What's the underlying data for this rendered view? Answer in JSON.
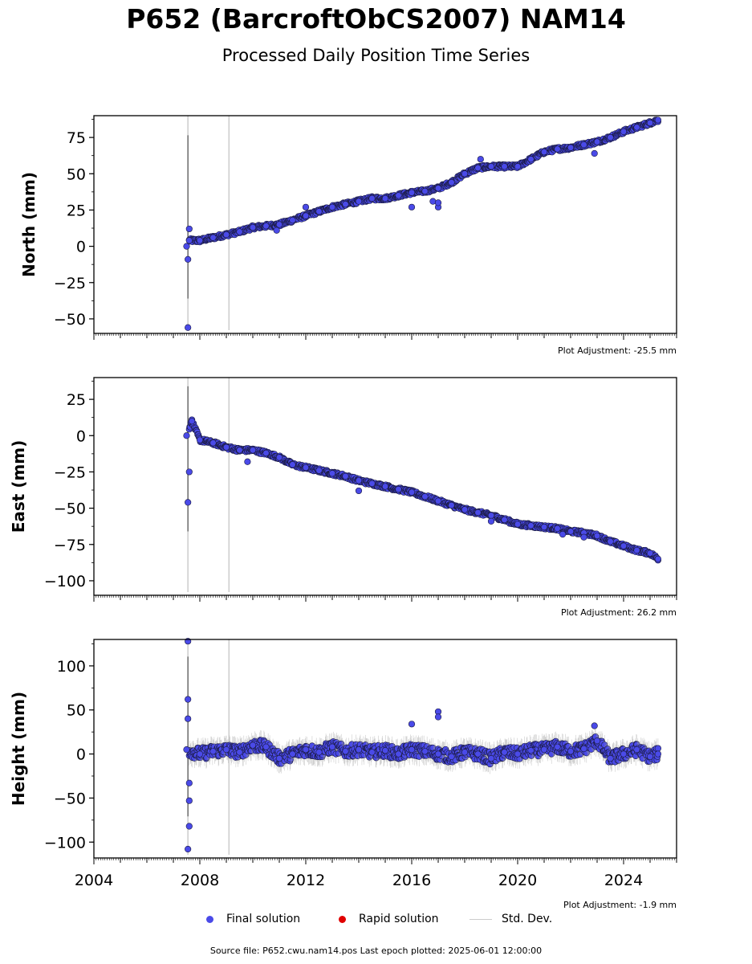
{
  "title": "P652 (BarcroftObCS2007) NAM14",
  "subtitle": "Processed Daily Position Time Series",
  "colors": {
    "final": "#4a4ae8",
    "final_edge": "#1a1a40",
    "rapid": "#e00000",
    "stddev": "#cccccc"
  },
  "legend": {
    "final": "Final solution",
    "rapid": "Rapid solution",
    "stddev": "Std. Dev."
  },
  "source_text": "Source file: P652.cwu.nam14.pos  Last epoch plotted: 2025-06-01 12:00:00",
  "chart_data": [
    {
      "type": "scatter",
      "ylabel": "North (mm)",
      "adjustment": "Plot Adjustment: -25.5 mm",
      "xlim": [
        2004.0,
        2026.0
      ],
      "ylim": [
        -60,
        90
      ],
      "yticks": [
        -50,
        -25,
        0,
        25,
        50,
        75
      ],
      "ytick_labels": [
        "−50",
        "−25",
        "0",
        "25",
        "50",
        "75"
      ],
      "series": [
        {
          "role": "final",
          "x": [
            2007.5,
            2007.6,
            2008.0,
            2008.5,
            2009.0,
            2009.5,
            2010.0,
            2010.5,
            2011.0,
            2011.5,
            2012.0,
            2012.5,
            2013.0,
            2013.5,
            2014.0,
            2014.5,
            2015.0,
            2015.5,
            2016.0,
            2016.5,
            2017.0,
            2017.5,
            2018.0,
            2018.5,
            2019.0,
            2019.5,
            2020.0,
            2020.5,
            2021.0,
            2021.5,
            2022.0,
            2022.5,
            2023.0,
            2023.5,
            2024.0,
            2024.5,
            2025.0,
            2025.3
          ],
          "y": [
            0,
            4,
            4,
            6,
            8,
            10,
            13,
            14,
            15,
            18,
            21,
            24,
            27,
            29,
            31,
            33,
            33,
            35,
            37,
            38,
            40,
            44,
            50,
            54,
            55,
            55,
            55,
            60,
            65,
            67,
            68,
            70,
            72,
            75,
            79,
            82,
            85,
            87
          ]
        },
        {
          "role": "outliers",
          "x": [
            2007.55,
            2007.55,
            2007.6,
            2016.0,
            2017.0,
            2016.8,
            2018.6,
            2010.9,
            2012.0,
            2022.9,
            2017.0
          ],
          "y": [
            -56,
            -9,
            12,
            27,
            27,
            31,
            60,
            11,
            27,
            64,
            30
          ]
        }
      ]
    },
    {
      "type": "scatter",
      "ylabel": "East (mm)",
      "adjustment": "Plot Adjustment: 26.2 mm",
      "xlim": [
        2004.0,
        2026.0
      ],
      "ylim": [
        -110,
        40
      ],
      "yticks": [
        -100,
        -75,
        -50,
        -25,
        0,
        25
      ],
      "ytick_labels": [
        "−100",
        "−75",
        "−50",
        "−25",
        "0",
        "25"
      ],
      "series": [
        {
          "role": "final",
          "x": [
            2007.5,
            2007.7,
            2008.0,
            2008.5,
            2009.0,
            2009.5,
            2010.0,
            2010.5,
            2011.0,
            2011.5,
            2012.0,
            2012.5,
            2013.0,
            2013.5,
            2014.0,
            2014.5,
            2015.0,
            2015.5,
            2016.0,
            2016.5,
            2017.0,
            2017.5,
            2018.0,
            2018.5,
            2019.0,
            2019.5,
            2020.0,
            2020.5,
            2021.0,
            2021.5,
            2022.0,
            2022.5,
            2023.0,
            2023.5,
            2024.0,
            2024.5,
            2025.0,
            2025.3
          ],
          "y": [
            0,
            10,
            -3,
            -5,
            -8,
            -10,
            -10,
            -12,
            -15,
            -20,
            -22,
            -24,
            -26,
            -28,
            -31,
            -33,
            -35,
            -37,
            -39,
            -42,
            -45,
            -48,
            -51,
            -53,
            -55,
            -58,
            -61,
            -62,
            -63,
            -64,
            -66,
            -67,
            -69,
            -73,
            -76,
            -79,
            -81,
            -85
          ]
        },
        {
          "role": "outliers",
          "x": [
            2007.55,
            2007.6,
            2009.8,
            2014.0,
            2019.0,
            2021.7,
            2022.5
          ],
          "y": [
            -46,
            -25,
            -18,
            -38,
            -59,
            -68,
            -70
          ]
        }
      ]
    },
    {
      "type": "scatter",
      "ylabel": "Height (mm)",
      "adjustment": "Plot Adjustment: -1.9 mm",
      "xlim": [
        2004.0,
        2026.0
      ],
      "ylim": [
        -118,
        130
      ],
      "yticks": [
        -100,
        -50,
        0,
        50,
        100
      ],
      "ytick_labels": [
        "−100",
        "−50",
        "0",
        "50",
        "100"
      ],
      "xticks": [
        2004,
        2008,
        2012,
        2016,
        2020,
        2024
      ],
      "xtick_labels": [
        "2004",
        "2008",
        "2012",
        "2016",
        "2020",
        "2024"
      ],
      "series": [
        {
          "role": "final",
          "x": [
            2007.5,
            2008.0,
            2008.5,
            2009.0,
            2009.5,
            2010.0,
            2010.5,
            2011.0,
            2011.5,
            2012.0,
            2012.5,
            2013.0,
            2013.5,
            2014.0,
            2014.5,
            2015.0,
            2015.5,
            2016.0,
            2016.5,
            2017.0,
            2017.5,
            2018.0,
            2018.5,
            2019.0,
            2019.5,
            2020.0,
            2020.5,
            2021.0,
            2021.5,
            2022.0,
            2022.5,
            2023.0,
            2023.5,
            2024.0,
            2024.5,
            2025.0,
            2025.3
          ],
          "y": [
            5,
            0,
            3,
            5,
            2,
            10,
            8,
            -5,
            0,
            5,
            2,
            8,
            3,
            5,
            2,
            4,
            0,
            5,
            3,
            0,
            -3,
            2,
            0,
            -5,
            2,
            0,
            4,
            5,
            8,
            3,
            6,
            15,
            -5,
            0,
            5,
            -3,
            0
          ]
        },
        {
          "role": "outliers",
          "x": [
            2007.55,
            2007.55,
            2007.55,
            2007.6,
            2007.6,
            2007.55,
            2007.6,
            2016.0,
            2017.0,
            2017.0,
            2022.9
          ],
          "y": [
            128,
            62,
            40,
            -33,
            -53,
            -108,
            -82,
            34,
            48,
            42,
            32
          ]
        }
      ]
    }
  ]
}
